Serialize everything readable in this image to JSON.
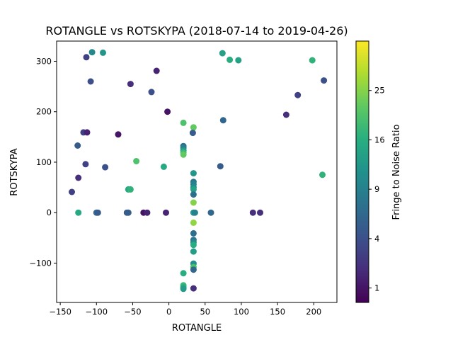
{
  "chart_data": {
    "type": "scatter",
    "title": "ROTANGLE vs ROTSKYPA (2018-07-14 to 2019-04-26)",
    "xlabel": "ROTANGLE",
    "ylabel": "ROTSKYPA",
    "xlim": [
      -155,
      232
    ],
    "ylim": [
      -178,
      340
    ],
    "xticks": [
      -150,
      -100,
      -50,
      0,
      50,
      100,
      150,
      200
    ],
    "yticks": [
      -100,
      0,
      100,
      200,
      300
    ],
    "colorbar": {
      "label": "Fringe to Noise Ratio",
      "colormap": "viridis",
      "scale": "sqrt",
      "range": [
        0.5,
        36
      ],
      "ticks": [
        1,
        4,
        9,
        16,
        25
      ],
      "tick_labels": [
        "1",
        "4",
        "9",
        "16",
        "25"
      ]
    },
    "grid": false,
    "points": [
      {
        "x": -114,
        "y": 308,
        "c": 3
      },
      {
        "x": -106,
        "y": 318,
        "c": 10
      },
      {
        "x": -91,
        "y": 317,
        "c": 12
      },
      {
        "x": -108,
        "y": 260,
        "c": 4
      },
      {
        "x": -53,
        "y": 255,
        "c": 2
      },
      {
        "x": -17,
        "y": 281,
        "c": 1.5
      },
      {
        "x": -24,
        "y": 239,
        "c": 4
      },
      {
        "x": -2,
        "y": 200,
        "c": 1
      },
      {
        "x": -118,
        "y": 159,
        "c": 3
      },
      {
        "x": -113,
        "y": 159,
        "c": 1.5
      },
      {
        "x": -70,
        "y": 155,
        "c": 1
      },
      {
        "x": -126,
        "y": 133,
        "c": 5
      },
      {
        "x": -115,
        "y": 96,
        "c": 3
      },
      {
        "x": -88,
        "y": 90,
        "c": 4
      },
      {
        "x": -45,
        "y": 102,
        "c": 20
      },
      {
        "x": -7,
        "y": 91,
        "c": 15
      },
      {
        "x": -125,
        "y": 69,
        "c": 2
      },
      {
        "x": -134,
        "y": 41,
        "c": 3
      },
      {
        "x": -56,
        "y": 46,
        "c": 15
      },
      {
        "x": -53,
        "y": 46,
        "c": 17
      },
      {
        "x": -125,
        "y": 0,
        "c": 15
      },
      {
        "x": -100,
        "y": 0,
        "c": 6
      },
      {
        "x": -98,
        "y": 0,
        "c": 5
      },
      {
        "x": -58,
        "y": 0,
        "c": 5
      },
      {
        "x": -56,
        "y": 0,
        "c": 5
      },
      {
        "x": -35,
        "y": 0,
        "c": 1
      },
      {
        "x": -30,
        "y": 0,
        "c": 1.5
      },
      {
        "x": -4,
        "y": 0,
        "c": 1.5
      },
      {
        "x": 20,
        "y": 178,
        "c": 20
      },
      {
        "x": 20,
        "y": 132,
        "c": 7
      },
      {
        "x": 20,
        "y": 128,
        "c": 9
      },
      {
        "x": 20,
        "y": 123,
        "c": 13
      },
      {
        "x": 20,
        "y": 119,
        "c": 18
      },
      {
        "x": 20,
        "y": 115,
        "c": 22
      },
      {
        "x": 34,
        "y": 169,
        "c": 22
      },
      {
        "x": 33,
        "y": 158,
        "c": 5
      },
      {
        "x": 34,
        "y": 78,
        "c": 12
      },
      {
        "x": 34,
        "y": 61,
        "c": 8
      },
      {
        "x": 34,
        "y": 56,
        "c": 9
      },
      {
        "x": 34,
        "y": 50,
        "c": 11
      },
      {
        "x": 34,
        "y": 46,
        "c": 14
      },
      {
        "x": 34,
        "y": 36,
        "c": 7
      },
      {
        "x": 34,
        "y": 20,
        "c": 25
      },
      {
        "x": 34,
        "y": 0,
        "c": 12
      },
      {
        "x": 36,
        "y": 0,
        "c": 9
      },
      {
        "x": 34,
        "y": -20,
        "c": 26
      },
      {
        "x": 34,
        "y": -41,
        "c": 7
      },
      {
        "x": 34,
        "y": -54,
        "c": 8
      },
      {
        "x": 34,
        "y": -59,
        "c": 10
      },
      {
        "x": 34,
        "y": -64,
        "c": 16
      },
      {
        "x": 34,
        "y": -77,
        "c": 13
      },
      {
        "x": 34,
        "y": -101,
        "c": 11
      },
      {
        "x": 34,
        "y": -108,
        "c": 20
      },
      {
        "x": 34,
        "y": -113,
        "c": 6
      },
      {
        "x": 34,
        "y": -150,
        "c": 2
      },
      {
        "x": 20,
        "y": -120,
        "c": 16
      },
      {
        "x": 20,
        "y": -144,
        "c": 18
      },
      {
        "x": 20,
        "y": -148,
        "c": 16
      },
      {
        "x": 20,
        "y": -151,
        "c": 13
      },
      {
        "x": 58,
        "y": 0,
        "c": 6
      },
      {
        "x": 71,
        "y": 92,
        "c": 5
      },
      {
        "x": 75,
        "y": 183,
        "c": 6
      },
      {
        "x": 74,
        "y": 316,
        "c": 14
      },
      {
        "x": 84,
        "y": 303,
        "c": 16
      },
      {
        "x": 96,
        "y": 302,
        "c": 14
      },
      {
        "x": 116,
        "y": 0,
        "c": 2
      },
      {
        "x": 126,
        "y": 0,
        "c": 2
      },
      {
        "x": 162,
        "y": 194,
        "c": 2
      },
      {
        "x": 178,
        "y": 233,
        "c": 3
      },
      {
        "x": 198,
        "y": 302,
        "c": 17
      },
      {
        "x": 212,
        "y": 75,
        "c": 17
      },
      {
        "x": 214,
        "y": 262,
        "c": 4
      }
    ]
  }
}
